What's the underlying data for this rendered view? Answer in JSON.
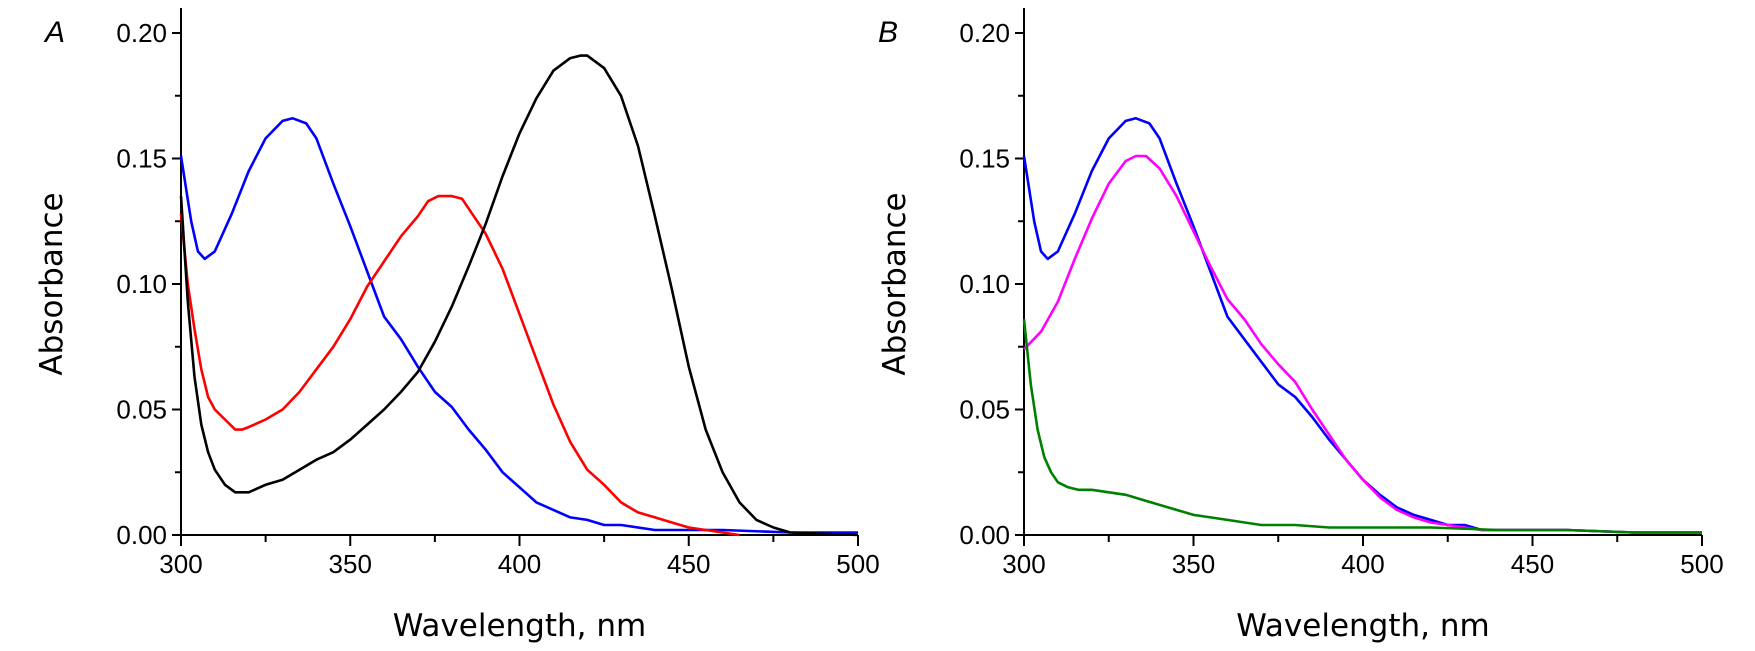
{
  "chart_data": [
    {
      "type": "line",
      "panel_label": "A",
      "xlabel": "Wavelength, nm",
      "ylabel": "Absorbance",
      "xlim": [
        300,
        500
      ],
      "ylim": [
        0,
        0.21
      ],
      "xticks": [
        300,
        350,
        400,
        450,
        500
      ],
      "xtick_labels": [
        "300",
        "350",
        "400",
        "450",
        "500"
      ],
      "yticks": [
        0.0,
        0.05,
        0.1,
        0.15,
        0.2
      ],
      "ytick_labels": [
        "0.00",
        "0.05",
        "0.10",
        "0.15",
        "0.20"
      ],
      "grid": false,
      "series": [
        {
          "name": "blue",
          "color": "#0000ff",
          "x": [
            300,
            303,
            305,
            307,
            310,
            315,
            320,
            325,
            330,
            333,
            337,
            340,
            345,
            350,
            355,
            360,
            365,
            370,
            375,
            380,
            385,
            390,
            395,
            400,
            405,
            410,
            415,
            420,
            425,
            430,
            440,
            450,
            460,
            480,
            500
          ],
          "y": [
            0.151,
            0.125,
            0.113,
            0.11,
            0.113,
            0.128,
            0.145,
            0.158,
            0.165,
            0.166,
            0.164,
            0.158,
            0.14,
            0.123,
            0.105,
            0.087,
            0.078,
            0.067,
            0.057,
            0.051,
            0.042,
            0.034,
            0.025,
            0.019,
            0.013,
            0.01,
            0.007,
            0.006,
            0.004,
            0.004,
            0.002,
            0.002,
            0.002,
            0.001,
            0.001
          ]
        },
        {
          "name": "red",
          "color": "#ff0000",
          "x": [
            300,
            302,
            304,
            306,
            308,
            310,
            313,
            316,
            318,
            320,
            325,
            330,
            335,
            340,
            345,
            350,
            355,
            360,
            365,
            370,
            373,
            376,
            380,
            383,
            386,
            390,
            395,
            400,
            405,
            410,
            415,
            420,
            425,
            430,
            435,
            440,
            445,
            450,
            455,
            460,
            465
          ],
          "y": [
            0.128,
            0.1,
            0.082,
            0.066,
            0.055,
            0.05,
            0.046,
            0.042,
            0.042,
            0.043,
            0.046,
            0.05,
            0.057,
            0.066,
            0.075,
            0.086,
            0.099,
            0.109,
            0.119,
            0.127,
            0.133,
            0.135,
            0.135,
            0.134,
            0.128,
            0.12,
            0.106,
            0.088,
            0.07,
            0.052,
            0.037,
            0.026,
            0.02,
            0.013,
            0.009,
            0.007,
            0.005,
            0.003,
            0.002,
            0.001,
            0.0
          ]
        },
        {
          "name": "black",
          "color": "#000000",
          "x": [
            300,
            302,
            304,
            306,
            308,
            310,
            313,
            316,
            320,
            325,
            330,
            335,
            340,
            345,
            350,
            355,
            360,
            365,
            370,
            375,
            380,
            385,
            390,
            395,
            400,
            405,
            410,
            415,
            418,
            420,
            425,
            430,
            435,
            440,
            445,
            450,
            455,
            460,
            465,
            470,
            475,
            480,
            500
          ],
          "y": [
            0.135,
            0.093,
            0.063,
            0.044,
            0.033,
            0.026,
            0.02,
            0.017,
            0.017,
            0.02,
            0.022,
            0.026,
            0.03,
            0.033,
            0.038,
            0.044,
            0.05,
            0.057,
            0.065,
            0.077,
            0.091,
            0.107,
            0.124,
            0.143,
            0.16,
            0.174,
            0.185,
            0.19,
            0.191,
            0.191,
            0.186,
            0.175,
            0.155,
            0.127,
            0.098,
            0.067,
            0.042,
            0.025,
            0.013,
            0.006,
            0.003,
            0.001,
            0.0
          ]
        }
      ]
    },
    {
      "type": "line",
      "panel_label": "B",
      "xlabel": "Wavelength, nm",
      "ylabel": "Absorbance",
      "xlim": [
        300,
        500
      ],
      "ylim": [
        0,
        0.21
      ],
      "xticks": [
        300,
        350,
        400,
        450,
        500
      ],
      "xtick_labels": [
        "300",
        "350",
        "400",
        "450",
        "500"
      ],
      "yticks": [
        0.0,
        0.05,
        0.1,
        0.15,
        0.2
      ],
      "ytick_labels": [
        "0.00",
        "0.05",
        "0.10",
        "0.15",
        "0.20"
      ],
      "grid": false,
      "series": [
        {
          "name": "blue",
          "color": "#0000ff",
          "x": [
            300,
            303,
            305,
            307,
            310,
            315,
            320,
            325,
            330,
            333,
            337,
            340,
            345,
            350,
            355,
            360,
            365,
            370,
            375,
            380,
            385,
            390,
            395,
            400,
            405,
            410,
            415,
            420,
            425,
            430,
            435,
            440,
            450,
            460,
            480,
            500
          ],
          "y": [
            0.151,
            0.125,
            0.113,
            0.11,
            0.113,
            0.128,
            0.145,
            0.158,
            0.165,
            0.166,
            0.164,
            0.158,
            0.14,
            0.123,
            0.105,
            0.087,
            0.078,
            0.069,
            0.06,
            0.055,
            0.047,
            0.038,
            0.03,
            0.022,
            0.016,
            0.011,
            0.008,
            0.006,
            0.004,
            0.004,
            0.002,
            0.002,
            0.002,
            0.002,
            0.001,
            0.001
          ]
        },
        {
          "name": "magenta",
          "color": "#ff00ff",
          "x": [
            300,
            305,
            310,
            315,
            320,
            325,
            330,
            333,
            336,
            340,
            345,
            350,
            355,
            360,
            365,
            370,
            375,
            380,
            385,
            390,
            395,
            400,
            405,
            410,
            415,
            420,
            425,
            430,
            435,
            440,
            450,
            460,
            480,
            500
          ],
          "y": [
            0.074,
            0.081,
            0.093,
            0.11,
            0.126,
            0.14,
            0.149,
            0.151,
            0.151,
            0.146,
            0.135,
            0.121,
            0.107,
            0.094,
            0.086,
            0.076,
            0.068,
            0.061,
            0.05,
            0.04,
            0.03,
            0.022,
            0.015,
            0.01,
            0.007,
            0.005,
            0.004,
            0.003,
            0.002,
            0.002,
            0.002,
            0.002,
            0.001,
            0.001
          ]
        },
        {
          "name": "green",
          "color": "#008000",
          "x": [
            300,
            302,
            304,
            306,
            308,
            310,
            313,
            316,
            320,
            325,
            330,
            335,
            340,
            345,
            350,
            360,
            370,
            380,
            390,
            400,
            420,
            440,
            460,
            480,
            500
          ],
          "y": [
            0.086,
            0.06,
            0.042,
            0.031,
            0.025,
            0.021,
            0.019,
            0.018,
            0.018,
            0.017,
            0.016,
            0.014,
            0.012,
            0.01,
            0.008,
            0.006,
            0.004,
            0.004,
            0.003,
            0.003,
            0.003,
            0.002,
            0.002,
            0.001,
            0.001
          ]
        }
      ]
    }
  ]
}
